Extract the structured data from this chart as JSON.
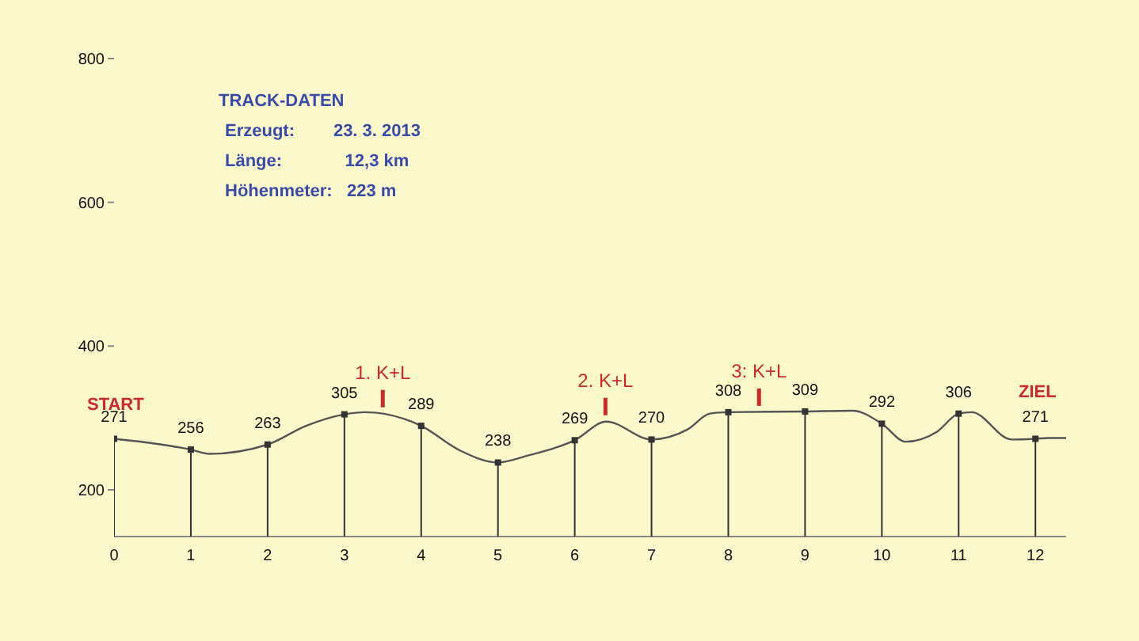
{
  "chart_data": {
    "type": "line",
    "xlim": [
      0,
      12.4
    ],
    "xticks": [
      0,
      1,
      2,
      3,
      4,
      5,
      6,
      7,
      8,
      9,
      10,
      11,
      12
    ],
    "ylim": [
      135,
      800
    ],
    "yticks": [
      200,
      400,
      600,
      800
    ],
    "grid": false,
    "line_style": "solid",
    "series": [
      {
        "color": "#555555",
        "x": [
          0,
          1,
          1.24,
          2,
          2.5,
          3,
          3.27,
          4,
          4.5,
          5,
          5.4,
          5.76,
          6,
          6.41,
          7,
          7.47,
          7.76,
          8,
          9,
          9.62,
          10,
          10.31,
          10.72,
          11,
          11.17,
          11.69,
          12,
          12.17,
          12.4
        ],
        "values": [
          271,
          256,
          250,
          263,
          289,
          305,
          308,
          289,
          255,
          238,
          248,
          259,
          269,
          295,
          270,
          284,
          306,
          308,
          309,
          310,
          292,
          267,
          281,
          306,
          308,
          270,
          271,
          272,
          272
        ]
      },
      {
        "type": "lollipop",
        "marker": "square",
        "color": "#333333",
        "x": [
          0,
          1,
          2,
          3,
          4,
          5,
          6,
          7,
          8,
          9,
          10,
          11,
          12
        ],
        "values": [
          271,
          256,
          263,
          305,
          289,
          238,
          269,
          270,
          308,
          309,
          292,
          306,
          271
        ],
        "value_labels": [
          "271",
          "256",
          "263",
          "305",
          "289",
          "238",
          "269",
          "270",
          "308",
          "309",
          "292",
          "306",
          "271"
        ]
      }
    ],
    "annotations": [
      "START",
      "ZIEL",
      {
        "text": "1. K+L",
        "x": 3.5,
        "y": 306
      },
      {
        "text": "2. K+L",
        "x": 6.4,
        "y": 295
      },
      {
        "text": "3: K+L",
        "x": 8.4,
        "y": 308
      },
      "TRACK-DATEN",
      "Erzeugt:        23. 3. 2013",
      "Länge:             12,3 km",
      "Höhenmeter:   223 m"
    ]
  }
}
